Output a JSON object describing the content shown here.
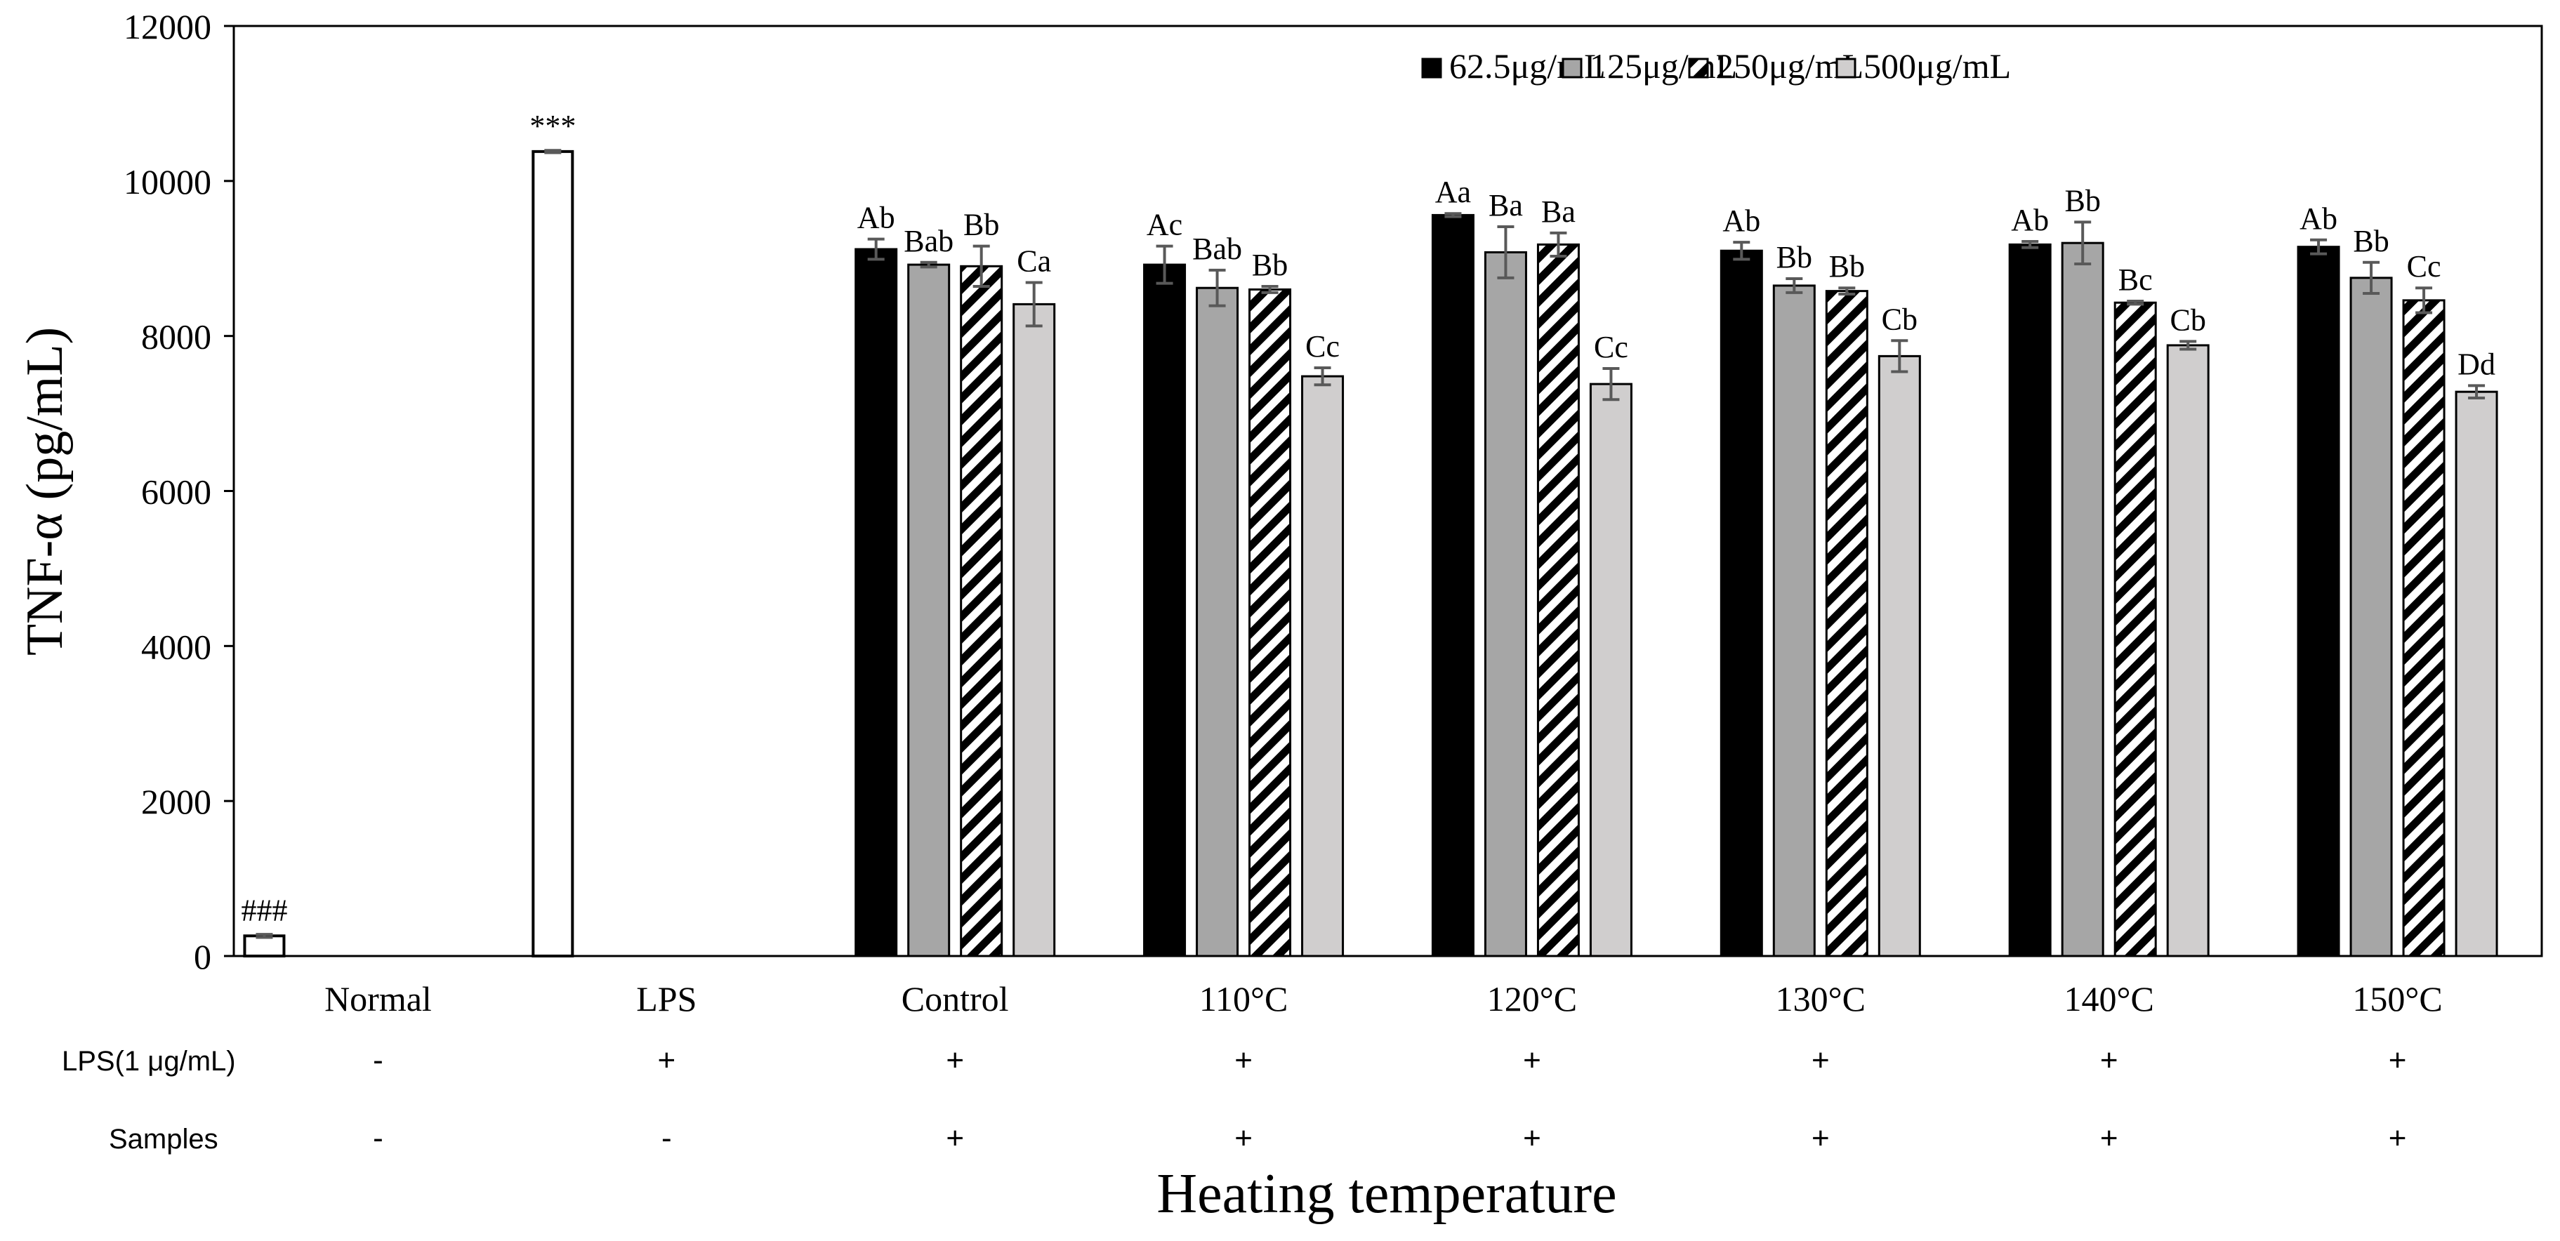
{
  "chart_data": {
    "type": "bar",
    "ylabel": "TNF-α (pg/mL)",
    "xlabel": "Heating temperature",
    "ylim": [
      0,
      12000
    ],
    "yticks": [
      0,
      2000,
      4000,
      6000,
      8000,
      10000,
      12000
    ],
    "legend_position": "top-right",
    "colors": {
      "black": "#000000",
      "gray": "#a6a6a6",
      "hatch": "#000000",
      "lightgray": "#d0cece",
      "white": "#ffffff",
      "errorbar": "#595959"
    },
    "series": [
      {
        "name": "62.5μg/mL",
        "style": "black"
      },
      {
        "name": "125μg/mL",
        "style": "gray"
      },
      {
        "name": "250μg/mL",
        "style": "hatch"
      },
      {
        "name": "500μg/mL",
        "style": "lightgray"
      }
    ],
    "categories": [
      "Normal",
      "LPS",
      "Control",
      "110°C",
      "120°C",
      "130°C",
      "140°C",
      "150°C"
    ],
    "single_bars": [
      {
        "category": "Normal",
        "value": 260,
        "err": 20,
        "annotation": "###"
      },
      {
        "category": "LPS",
        "value": 10380,
        "err": 15,
        "annotation": "***"
      }
    ],
    "groups": [
      {
        "category": "Control",
        "values": [
          9120,
          8920,
          8900,
          8410
        ],
        "errors": [
          130,
          30,
          260,
          280
        ],
        "labels": [
          "Ab",
          "Bab",
          "Bb",
          "Ca"
        ]
      },
      {
        "category": "110°C",
        "values": [
          8920,
          8620,
          8600,
          7480
        ],
        "errors": [
          240,
          230,
          40,
          110
        ],
        "labels": [
          "Ac",
          "Bab",
          "Bb",
          "Cc"
        ]
      },
      {
        "category": "120°C",
        "values": [
          9560,
          9080,
          9180,
          7380
        ],
        "errors": [
          20,
          330,
          150,
          200
        ],
        "labels": [
          "Aa",
          "Ba",
          "Ba",
          "Cc"
        ]
      },
      {
        "category": "130°C",
        "values": [
          9100,
          8650,
          8580,
          7740
        ],
        "errors": [
          110,
          90,
          40,
          200
        ],
        "labels": [
          "Ab",
          "Bb",
          "Bb",
          "Cb"
        ]
      },
      {
        "category": "140°C",
        "values": [
          9180,
          9200,
          8430,
          7880
        ],
        "errors": [
          40,
          270,
          20,
          50
        ],
        "labels": [
          "Ab",
          "Bb",
          "Bc",
          "Cb"
        ]
      },
      {
        "category": "150°C",
        "values": [
          9150,
          8750,
          8460,
          7280
        ],
        "errors": [
          90,
          200,
          160,
          80
        ],
        "labels": [
          "Ab",
          "Bb",
          "Cc",
          "Dd"
        ]
      }
    ],
    "treatment_table": {
      "rows": [
        {
          "label": "LPS(1 μg/mL)",
          "values": [
            "-",
            "+",
            "+",
            "+",
            "+",
            "+",
            "+",
            "+"
          ]
        },
        {
          "label": "Samples",
          "values": [
            "-",
            "-",
            "+",
            "+",
            "+",
            "+",
            "+",
            "+"
          ]
        }
      ]
    }
  }
}
